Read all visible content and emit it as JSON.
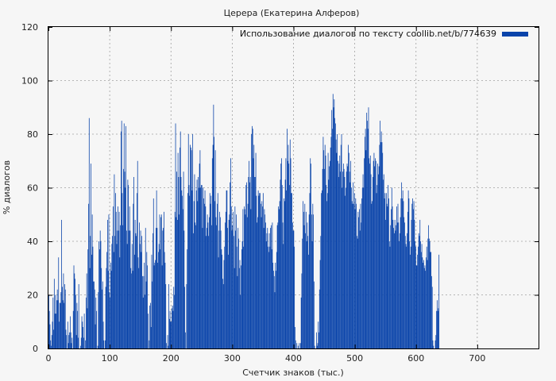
{
  "chart_data": {
    "type": "bar",
    "title": "Церера (Екатерина Алферов)",
    "xlabel": "Счетчик знаков (тыс.)",
    "ylabel": "% диалогов",
    "xlim": [
      0,
      800
    ],
    "ylim": [
      0,
      120
    ],
    "x_ticks": [
      0,
      100,
      200,
      300,
      400,
      500,
      600,
      700
    ],
    "y_ticks": [
      0,
      20,
      40,
      60,
      80,
      100,
      120
    ],
    "grid": true,
    "legend_position": "top-right",
    "series": [
      {
        "name": "Использование диалогов по тексту coollib.net/b/774639",
        "color": "#0a44aa",
        "x_start": 0,
        "x_step": 1,
        "values": [
          20,
          14,
          9,
          3,
          1,
          5,
          10,
          19,
          7,
          26,
          13,
          20,
          13,
          18,
          22,
          18,
          34,
          10,
          17,
          17,
          21,
          48,
          23,
          18,
          28,
          17,
          24,
          22,
          7,
          5,
          0,
          10,
          2,
          5,
          6,
          12,
          6,
          2,
          4,
          0,
          14,
          31,
          28,
          26,
          20,
          5,
          17,
          14,
          4,
          24,
          0,
          0,
          1,
          4,
          12,
          10,
          8,
          4,
          13,
          0,
          3,
          19,
          28,
          15,
          37,
          54,
          86,
          30,
          42,
          69,
          35,
          50,
          38,
          25,
          25,
          22,
          9,
          19,
          14,
          0,
          1,
          21,
          40,
          37,
          44,
          40,
          30,
          22,
          25,
          10,
          3,
          0,
          3,
          23,
          30,
          36,
          48,
          29,
          50,
          21,
          19,
          32,
          29,
          39,
          42,
          53,
          36,
          65,
          42,
          58,
          51,
          39,
          44,
          53,
          44,
          51,
          34,
          46,
          81,
          85,
          58,
          46,
          67,
          84,
          66,
          60,
          83,
          44,
          39,
          63,
          61,
          44,
          53,
          44,
          30,
          28,
          39,
          29,
          54,
          64,
          35,
          48,
          43,
          42,
          58,
          70,
          34,
          30,
          47,
          39,
          44,
          36,
          42,
          27,
          19,
          27,
          32,
          20,
          45,
          25,
          36,
          31,
          13,
          0,
          3,
          16,
          17,
          8,
          35,
          25,
          43,
          56,
          31,
          32,
          33,
          45,
          59,
          45,
          32,
          36,
          39,
          50,
          37,
          49,
          50,
          31,
          44,
          45,
          51,
          36,
          32,
          24,
          2,
          0,
          5,
          1,
          24,
          11,
          14,
          10,
          10,
          15,
          16,
          14,
          23,
          20,
          51,
          84,
          49,
          66,
          48,
          73,
          64,
          50,
          75,
          81,
          64,
          59,
          57,
          52,
          66,
          44,
          23,
          6,
          0,
          24,
          37,
          58,
          80,
          61,
          57,
          76,
          75,
          74,
          59,
          80,
          43,
          55,
          65,
          47,
          46,
          59,
          63,
          55,
          64,
          60,
          69,
          74,
          60,
          61,
          61,
          45,
          60,
          56,
          54,
          59,
          53,
          42,
          45,
          50,
          47,
          42,
          49,
          58,
          54,
          57,
          46,
          71,
          76,
          91,
          79,
          55,
          74,
          49,
          46,
          54,
          58,
          34,
          44,
          51,
          49,
          44,
          37,
          35,
          26,
          24,
          33,
          38,
          47,
          51,
          59,
          59,
          45,
          35,
          48,
          50,
          62,
          71,
          53,
          44,
          46,
          51,
          42,
          30,
          53,
          44,
          50,
          38,
          27,
          45,
          41,
          30,
          33,
          20,
          31,
          37,
          40,
          52,
          38,
          53,
          52,
          50,
          61,
          62,
          49,
          54,
          64,
          70,
          62,
          64,
          52,
          80,
          83,
          82,
          71,
          76,
          64,
          64,
          73,
          57,
          47,
          49,
          59,
          57,
          58,
          58,
          54,
          49,
          55,
          53,
          58,
          45,
          52,
          50,
          47,
          40,
          43,
          45,
          38,
          36,
          43,
          38,
          45,
          46,
          37,
          47,
          32,
          29,
          27,
          21,
          32,
          29,
          36,
          46,
          47,
          53,
          52,
          55,
          63,
          69,
          71,
          61,
          47,
          39,
          56,
          55,
          63,
          71,
          59,
          82,
          70,
          76,
          69,
          61,
          78,
          71,
          58,
          58,
          47,
          44,
          44,
          38,
          8,
          3,
          0,
          2,
          0,
          1,
          0,
          2,
          0,
          2,
          19,
          28,
          41,
          55,
          51,
          46,
          54,
          43,
          51,
          40,
          47,
          42,
          35,
          50,
          58,
          71,
          69,
          50,
          40,
          54,
          50,
          25,
          1,
          0,
          0,
          6,
          1,
          2,
          10,
          6,
          22,
          33,
          42,
          58,
          59,
          67,
          79,
          74,
          67,
          76,
          72,
          61,
          55,
          58,
          73,
          63,
          68,
          70,
          75,
          79,
          89,
          82,
          95,
          90,
          93,
          86,
          84,
          78,
          73,
          80,
          70,
          64,
          69,
          72,
          66,
          76,
          80,
          60,
          66,
          69,
          67,
          64,
          57,
          60,
          66,
          69,
          68,
          76,
          73,
          66,
          62,
          70,
          60,
          55,
          54,
          62,
          54,
          58,
          52,
          56,
          54,
          42,
          41,
          51,
          49,
          52,
          44,
          54,
          47,
          56,
          60,
          65,
          60,
          71,
          79,
          82,
          74,
          88,
          85,
          82,
          90,
          71,
          69,
          72,
          65,
          54,
          55,
          64,
          70,
          73,
          68,
          71,
          70,
          58,
          61,
          69,
          65,
          68,
          76,
          85,
          77,
          81,
          77,
          73,
          63,
          65,
          56,
          58,
          48,
          58,
          54,
          53,
          61,
          56,
          40,
          38,
          46,
          52,
          60,
          53,
          48,
          45,
          43,
          48,
          44,
          46,
          53,
          47,
          54,
          47,
          40,
          43,
          49,
          56,
          62,
          56,
          59,
          55,
          49,
          47,
          42,
          39,
          38,
          43,
          51,
          59,
          56,
          40,
          35,
          38,
          48,
          54,
          56,
          52,
          55,
          48,
          40,
          38,
          31,
          31,
          35,
          38,
          43,
          42,
          48,
          40,
          36,
          39,
          34,
          32,
          33,
          30,
          31,
          29,
          34,
          38,
          33,
          41,
          46,
          41,
          40,
          36,
          36,
          27,
          23,
          3,
          1,
          0,
          0,
          3,
          5,
          14,
          18,
          14,
          15,
          35
        ]
      }
    ]
  }
}
